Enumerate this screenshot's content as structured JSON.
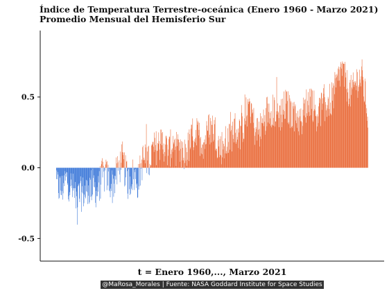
{
  "chart_data": {
    "type": "bar",
    "title": "Índice de Temperatura Terrestre-oceánica (Enero 1960 - Marzo 2021)",
    "subtitle": "Promedio Mensual del Hemisferio Sur",
    "xlabel": "t = Enero 1960,..., Marzo 2021",
    "ylabel": "",
    "caption": "@MaRosa_Morales | Fuente: NASA Goddard Institute for Space Studies",
    "x_range": [
      "1960-01",
      "2021-03"
    ],
    "n_months": 735,
    "ylim": [
      -0.66,
      0.97
    ],
    "yticks": [
      -0.5,
      0.0,
      0.5
    ],
    "ytick_labels": [
      "-0.5",
      "0.0",
      "0.5"
    ],
    "grid": false,
    "colors": {
      "positive": "#e8612c",
      "negative": "#2f6fd6"
    },
    "anchors": [
      [
        "1960-01",
        -0.12
      ],
      [
        "1961-01",
        -0.16
      ],
      [
        "1962-01",
        -0.08
      ],
      [
        "1963-01",
        -0.14
      ],
      [
        "1964-01",
        -0.22
      ],
      [
        "1965-01",
        -0.18
      ],
      [
        "1966-01",
        -0.17
      ],
      [
        "1967-01",
        -0.12
      ],
      [
        "1968-01",
        -0.17
      ],
      [
        "1969-01",
        -0.06
      ],
      [
        "1970-01",
        -0.06
      ],
      [
        "1971-01",
        -0.13
      ],
      [
        "1972-01",
        -0.03
      ],
      [
        "1973-01",
        0.06
      ],
      [
        "1974-01",
        -0.11
      ],
      [
        "1975-01",
        -0.05
      ],
      [
        "1976-01",
        -0.1
      ],
      [
        "1977-01",
        0.06
      ],
      [
        "1978-01",
        0.06
      ],
      [
        "1979-01",
        0.12
      ],
      [
        "1980-01",
        0.16
      ],
      [
        "1981-01",
        0.18
      ],
      [
        "1982-01",
        0.1
      ],
      [
        "1983-01",
        0.2
      ],
      [
        "1984-01",
        0.08
      ],
      [
        "1985-01",
        0.08
      ],
      [
        "1986-01",
        0.15
      ],
      [
        "1987-01",
        0.24
      ],
      [
        "1988-01",
        0.22
      ],
      [
        "1989-01",
        0.18
      ],
      [
        "1990-01",
        0.28
      ],
      [
        "1991-01",
        0.28
      ],
      [
        "1992-01",
        0.14
      ],
      [
        "1993-01",
        0.16
      ],
      [
        "1994-01",
        0.2
      ],
      [
        "1995-01",
        0.28
      ],
      [
        "1996-01",
        0.24
      ],
      [
        "1997-01",
        0.34
      ],
      [
        "1998-01",
        0.48
      ],
      [
        "1999-01",
        0.26
      ],
      [
        "2000-01",
        0.26
      ],
      [
        "2001-01",
        0.38
      ],
      [
        "2002-01",
        0.42
      ],
      [
        "2003-01",
        0.4
      ],
      [
        "2004-01",
        0.38
      ],
      [
        "2005-01",
        0.44
      ],
      [
        "2006-01",
        0.4
      ],
      [
        "2007-01",
        0.38
      ],
      [
        "2008-01",
        0.32
      ],
      [
        "2009-01",
        0.44
      ],
      [
        "2010-01",
        0.5
      ],
      [
        "2011-01",
        0.38
      ],
      [
        "2012-01",
        0.42
      ],
      [
        "2013-01",
        0.46
      ],
      [
        "2014-01",
        0.48
      ],
      [
        "2015-01",
        0.58
      ],
      [
        "2016-01",
        0.7
      ],
      [
        "2017-01",
        0.58
      ],
      [
        "2018-01",
        0.52
      ],
      [
        "2019-01",
        0.62
      ],
      [
        "2020-01",
        0.64
      ],
      [
        "2021-01",
        0.42
      ],
      [
        "2021-03",
        0.36
      ]
    ]
  }
}
